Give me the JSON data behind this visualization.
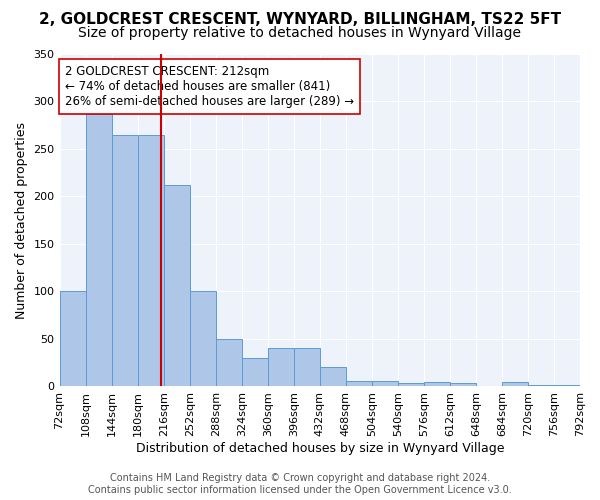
{
  "title1": "2, GOLDCREST CRESCENT, WYNYARD, BILLINGHAM, TS22 5FT",
  "title2": "Size of property relative to detached houses in Wynyard Village",
  "xlabel": "Distribution of detached houses by size in Wynyard Village",
  "ylabel": "Number of detached properties",
  "bar_edges": [
    72,
    108,
    144,
    180,
    216,
    252,
    288,
    324,
    360,
    396,
    432,
    468,
    504,
    540,
    576,
    612,
    648,
    684,
    720,
    756,
    792
  ],
  "bar_heights": [
    100,
    287,
    265,
    265,
    212,
    101,
    50,
    30,
    40,
    40,
    20,
    6,
    6,
    4,
    5,
    4,
    1,
    5,
    2,
    2
  ],
  "bar_color": "#aec6e8",
  "bar_edge_color": "#5b9bd5",
  "property_sqm": 212,
  "vline_color": "#cc0000",
  "annotation_text": "2 GOLDCREST CRESCENT: 212sqm\n← 74% of detached houses are smaller (841)\n26% of semi-detached houses are larger (289) →",
  "annotation_box_color": "white",
  "annotation_box_edge": "#cc0000",
  "ylim": [
    0,
    350
  ],
  "yticks": [
    0,
    50,
    100,
    150,
    200,
    250,
    300,
    350
  ],
  "bg_color": "#eef3fb",
  "footer_text": "Contains HM Land Registry data © Crown copyright and database right 2024.\nContains public sector information licensed under the Open Government Licence v3.0.",
  "title1_fontsize": 11,
  "title2_fontsize": 10,
  "xlabel_fontsize": 9,
  "ylabel_fontsize": 9,
  "tick_fontsize": 8,
  "annotation_fontsize": 8.5,
  "footer_fontsize": 7
}
